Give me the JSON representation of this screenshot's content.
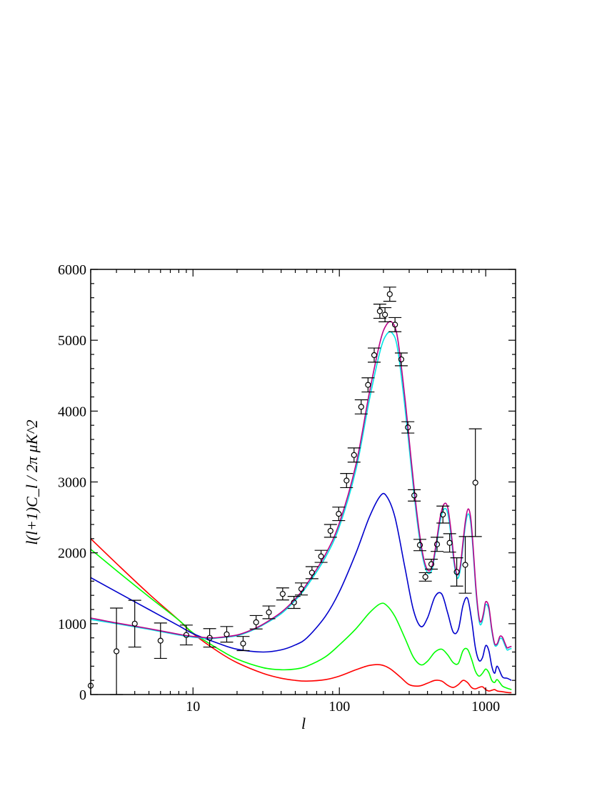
{
  "chart_data": {
    "type": "line",
    "xlabel": "l",
    "ylabel": "l(l+1)C_l / 2π μK^2",
    "xscale": "log",
    "xlim": [
      2,
      1600
    ],
    "ylim": [
      0,
      6000
    ],
    "x_ticks": [
      10,
      100,
      1000
    ],
    "x_tick_labels": [
      "10",
      "100",
      "1000"
    ],
    "y_ticks": [
      0,
      1000,
      2000,
      3000,
      4000,
      5000,
      6000
    ],
    "y_tick_labels": [
      "0",
      "1000",
      "2000",
      "3000",
      "4000",
      "5000",
      "6000"
    ],
    "grid": false,
    "legend": "none",
    "series": [
      {
        "color": "#ff0000",
        "x": [
          2,
          3,
          5,
          8,
          10,
          15,
          20,
          30,
          40,
          50,
          60,
          80,
          100,
          130,
          160,
          190,
          220,
          260,
          300,
          350,
          400,
          450,
          500,
          550,
          600,
          650,
          700,
          750,
          800,
          850,
          900,
          950,
          1000,
          1050,
          1100,
          1150,
          1200,
          1300,
          1400,
          1500
        ],
        "y": [
          2200,
          1850,
          1420,
          1050,
          860,
          600,
          450,
          300,
          230,
          200,
          190,
          210,
          260,
          350,
          410,
          420,
          370,
          250,
          140,
          120,
          160,
          200,
          190,
          130,
          100,
          140,
          200,
          170,
          100,
          80,
          100,
          110,
          70,
          50,
          60,
          70,
          50,
          40,
          30,
          25
        ]
      },
      {
        "color": "#00ff00",
        "x": [
          2,
          3,
          5,
          8,
          10,
          15,
          20,
          30,
          40,
          50,
          60,
          80,
          100,
          130,
          160,
          190,
          210,
          240,
          280,
          320,
          360,
          400,
          450,
          500,
          550,
          600,
          650,
          700,
          750,
          800,
          850,
          900,
          950,
          1000,
          1050,
          1100,
          1150,
          1200,
          1300,
          1400,
          1500
        ],
        "y": [
          2050,
          1750,
          1380,
          1050,
          870,
          640,
          500,
          380,
          350,
          360,
          400,
          530,
          700,
          930,
          1150,
          1280,
          1260,
          1100,
          800,
          530,
          420,
          470,
          600,
          640,
          560,
          450,
          440,
          620,
          640,
          500,
          330,
          260,
          300,
          360,
          310,
          200,
          170,
          210,
          120,
          90,
          70
        ]
      },
      {
        "color": "#0000cc",
        "x": [
          2,
          3,
          5,
          8,
          10,
          15,
          20,
          30,
          40,
          50,
          60,
          80,
          100,
          130,
          160,
          190,
          210,
          240,
          280,
          320,
          360,
          400,
          450,
          500,
          550,
          600,
          650,
          700,
          750,
          800,
          850,
          900,
          950,
          1000,
          1050,
          1100,
          1150,
          1200,
          1300,
          1400,
          1500
        ],
        "y": [
          1650,
          1450,
          1200,
          970,
          860,
          720,
          640,
          600,
          630,
          700,
          800,
          1100,
          1450,
          2000,
          2500,
          2800,
          2800,
          2500,
          1800,
          1200,
          960,
          1080,
          1380,
          1420,
          1150,
          880,
          920,
          1260,
          1360,
          1060,
          660,
          480,
          520,
          690,
          620,
          400,
          300,
          400,
          250,
          230,
          200
        ]
      },
      {
        "color": "#00e5e5",
        "x": [
          2,
          3,
          5,
          8,
          10,
          13,
          15,
          20,
          25,
          30,
          40,
          50,
          60,
          80,
          100,
          130,
          160,
          190,
          210,
          230,
          250,
          280,
          310,
          340,
          370,
          400,
          430,
          460,
          490,
          520,
          550,
          580,
          610,
          640,
          670,
          700,
          730,
          760,
          790,
          820,
          850,
          880,
          910,
          940,
          970,
          1000,
          1050,
          1100,
          1150,
          1200,
          1250,
          1300,
          1350,
          1400,
          1450,
          1500
        ],
        "y": [
          1060,
          1000,
          920,
          840,
          810,
          790,
          800,
          830,
          900,
          980,
          1140,
          1330,
          1530,
          1930,
          2370,
          3180,
          4150,
          4850,
          5080,
          5100,
          4880,
          4070,
          3200,
          2450,
          1950,
          1720,
          1770,
          2100,
          2460,
          2620,
          2560,
          2230,
          1830,
          1640,
          1760,
          2100,
          2420,
          2550,
          2420,
          2030,
          1560,
          1210,
          1000,
          1010,
          1130,
          1270,
          1200,
          900,
          700,
          700,
          790,
          780,
          700,
          630,
          640,
          650
        ]
      },
      {
        "color": "#bb0088",
        "x": [
          2,
          3,
          5,
          8,
          10,
          13,
          15,
          20,
          25,
          30,
          40,
          50,
          60,
          80,
          100,
          130,
          160,
          190,
          210,
          230,
          250,
          280,
          310,
          340,
          370,
          400,
          430,
          460,
          490,
          520,
          550,
          580,
          610,
          640,
          670,
          700,
          730,
          760,
          790,
          820,
          850,
          880,
          910,
          940,
          970,
          1000,
          1050,
          1100,
          1150,
          1200,
          1250,
          1300,
          1350,
          1400,
          1450,
          1500
        ],
        "y": [
          1080,
          1010,
          930,
          850,
          820,
          800,
          805,
          840,
          910,
          990,
          1160,
          1350,
          1560,
          1970,
          2420,
          3250,
          4250,
          4980,
          5220,
          5250,
          5030,
          4200,
          3300,
          2530,
          2000,
          1760,
          1810,
          2150,
          2520,
          2690,
          2640,
          2300,
          1880,
          1690,
          1810,
          2160,
          2480,
          2620,
          2490,
          2090,
          1610,
          1250,
          1040,
          1050,
          1170,
          1310,
          1240,
          930,
          720,
          720,
          820,
          810,
          730,
          660,
          670,
          680
        ]
      }
    ],
    "data_points": {
      "x": [
        2,
        3,
        4,
        6,
        9,
        13,
        17,
        22,
        27,
        33,
        41,
        49,
        55,
        65,
        75,
        87,
        99,
        112,
        126,
        141,
        157,
        173,
        189,
        205,
        221,
        240,
        265,
        294,
        325,
        355,
        387,
        425,
        465,
        510,
        567,
        634,
        725,
        850
      ],
      "y": [
        125,
        610,
        1000,
        760,
        840,
        800,
        850,
        720,
        1020,
        1160,
        1420,
        1300,
        1490,
        1720,
        1950,
        2310,
        2550,
        3020,
        3380,
        4060,
        4370,
        4790,
        5410,
        5360,
        5650,
        5220,
        4730,
        3770,
        2810,
        2110,
        1660,
        1840,
        2120,
        2540,
        2140,
        1730,
        1830,
        2990
      ],
      "err": [
        0,
        610,
        330,
        250,
        140,
        130,
        110,
        100,
        95,
        90,
        85,
        85,
        85,
        85,
        85,
        90,
        95,
        100,
        100,
        100,
        100,
        100,
        100,
        100,
        100,
        100,
        90,
        80,
        80,
        80,
        60,
        70,
        100,
        120,
        130,
        200,
        400,
        760
      ]
    }
  }
}
